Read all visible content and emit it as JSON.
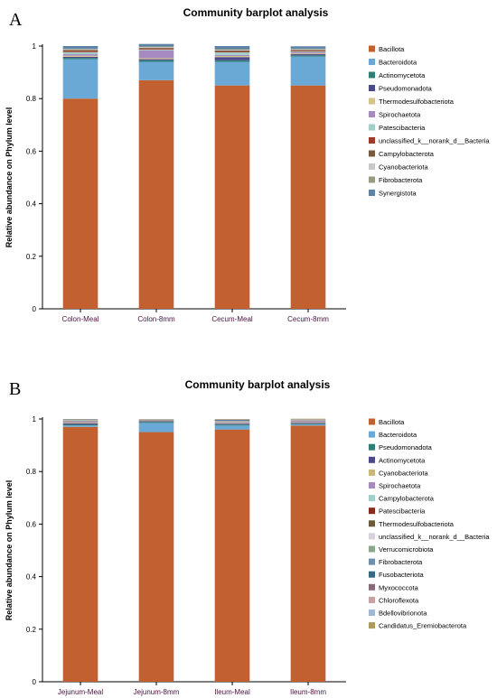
{
  "chart_data": [
    {
      "type": "bar",
      "stacked": true,
      "panel_letter": "A",
      "title": "Community barplot analysis",
      "xlabel": "",
      "ylabel": "Relative abundance on Phylum level",
      "ylim": [
        0,
        1
      ],
      "yticks": [
        "0",
        "0.2",
        "0.4",
        "0.6",
        "0.8",
        "1"
      ],
      "legend_position": "right",
      "categories": [
        "Colon-Meal",
        "Colon-8mm",
        "Cecum-Meal",
        "Cecum-8mm"
      ],
      "series": [
        {
          "name": "Bacillota",
          "color": "#c2602f",
          "values": [
            0.8,
            0.87,
            0.85,
            0.85
          ]
        },
        {
          "name": "Bacteroidota",
          "color": "#6aa8d6",
          "values": [
            0.15,
            0.07,
            0.09,
            0.11
          ]
        },
        {
          "name": "Actinomycetota",
          "color": "#2f7f79",
          "values": [
            0.005,
            0.006,
            0.006,
            0.005
          ]
        },
        {
          "name": "Pseudomonadota",
          "color": "#4a4a8a",
          "values": [
            0.004,
            0.004,
            0.012,
            0.004
          ]
        },
        {
          "name": "Thermodesulfobacteriota",
          "color": "#d6c28a",
          "values": [
            0.004,
            0.004,
            0.004,
            0.003
          ]
        },
        {
          "name": "Spirochaetota",
          "color": "#a78bc0",
          "values": [
            0.006,
            0.03,
            0.004,
            0.004
          ]
        },
        {
          "name": "Patescibacteria",
          "color": "#9fcfc8",
          "values": [
            0.008,
            0.003,
            0.01,
            0.003
          ]
        },
        {
          "name": "unclassified_k__norank_d__Bacteria",
          "color": "#a23a2a",
          "values": [
            0.004,
            0.003,
            0.003,
            0.003
          ]
        },
        {
          "name": "Campylobacterota",
          "color": "#7a5a3a",
          "values": [
            0.004,
            0.003,
            0.004,
            0.003
          ]
        },
        {
          "name": "Cyanobacteriota",
          "color": "#c9c9c9",
          "values": [
            0.003,
            0.003,
            0.003,
            0.003
          ]
        },
        {
          "name": "Fibrobacterota",
          "color": "#9a9a80",
          "values": [
            0.002,
            0.002,
            0.002,
            0.002
          ]
        },
        {
          "name": "Synergistota",
          "color": "#5c82a6",
          "values": [
            0.01,
            0.01,
            0.012,
            0.009
          ]
        }
      ]
    },
    {
      "type": "bar",
      "stacked": true,
      "panel_letter": "B",
      "title": "Community barplot analysis",
      "xlabel": "",
      "ylabel": "Relative abundance on Phylum level",
      "ylim": [
        0,
        1
      ],
      "yticks": [
        "0",
        "0.2",
        "0.4",
        "0.6",
        "0.8",
        "1"
      ],
      "legend_position": "right",
      "categories": [
        "Jejunum-Meal",
        "Jejunum-8mm",
        "Ileum-Meal",
        "Ileum-8mm"
      ],
      "series": [
        {
          "name": "Bacillota",
          "color": "#c2602f",
          "values": [
            0.97,
            0.95,
            0.96,
            0.975
          ]
        },
        {
          "name": "Bacteroidota",
          "color": "#6aa8d6",
          "values": [
            0.005,
            0.035,
            0.015,
            0.004
          ]
        },
        {
          "name": "Pseudomonadota",
          "color": "#2f7f79",
          "values": [
            0.004,
            0.004,
            0.004,
            0.003
          ]
        },
        {
          "name": "Actinomycetota",
          "color": "#4a4a8a",
          "values": [
            0.004,
            0.003,
            0.003,
            0.003
          ]
        },
        {
          "name": "Cyanobacteriota",
          "color": "#c9b77a",
          "values": [
            0.003,
            0.001,
            0.002,
            0.002
          ]
        },
        {
          "name": "Spirochaetota",
          "color": "#a78bc0",
          "values": [
            0.004,
            0.001,
            0.003,
            0.004
          ]
        },
        {
          "name": "Campylobacterota",
          "color": "#9fcfc8",
          "values": [
            0.002,
            0.001,
            0.002,
            0.001
          ]
        },
        {
          "name": "Patescibacteria",
          "color": "#8a2a1a",
          "values": [
            0.001,
            0.001,
            0.001,
            0.001
          ]
        },
        {
          "name": "Thermodesulfobacteriota",
          "color": "#6a5a3a",
          "values": [
            0.001,
            0.001,
            0.001,
            0.001
          ]
        },
        {
          "name": "unclassified_k__norank_d__Bacteria",
          "color": "#d8d0dc",
          "values": [
            0.001,
            0.001,
            0.001,
            0.001
          ]
        },
        {
          "name": "Verrucomicrobiota",
          "color": "#8aa88a",
          "values": [
            0.001,
            0.0,
            0.001,
            0.001
          ]
        },
        {
          "name": "Fibrobacterota",
          "color": "#6d8fb0",
          "values": [
            0.001,
            0.0,
            0.001,
            0.0
          ]
        },
        {
          "name": "Fusobacteriota",
          "color": "#356a86",
          "values": [
            0.001,
            0.001,
            0.003,
            0.001
          ]
        },
        {
          "name": "Myxococcota",
          "color": "#8a6a7a",
          "values": [
            0.001,
            0.0,
            0.001,
            0.001
          ]
        },
        {
          "name": "Chloroflexota",
          "color": "#c9a0a0",
          "values": [
            0.0,
            0.0,
            0.001,
            0.001
          ]
        },
        {
          "name": "Bdellovibrionota",
          "color": "#9fb8d8",
          "values": [
            0.0,
            0.0,
            0.0,
            0.0
          ]
        },
        {
          "name": "Candidatus_Eremiobacterota",
          "color": "#b09a5a",
          "values": [
            0.001,
            0.001,
            0.001,
            0.002
          ]
        }
      ]
    }
  ]
}
